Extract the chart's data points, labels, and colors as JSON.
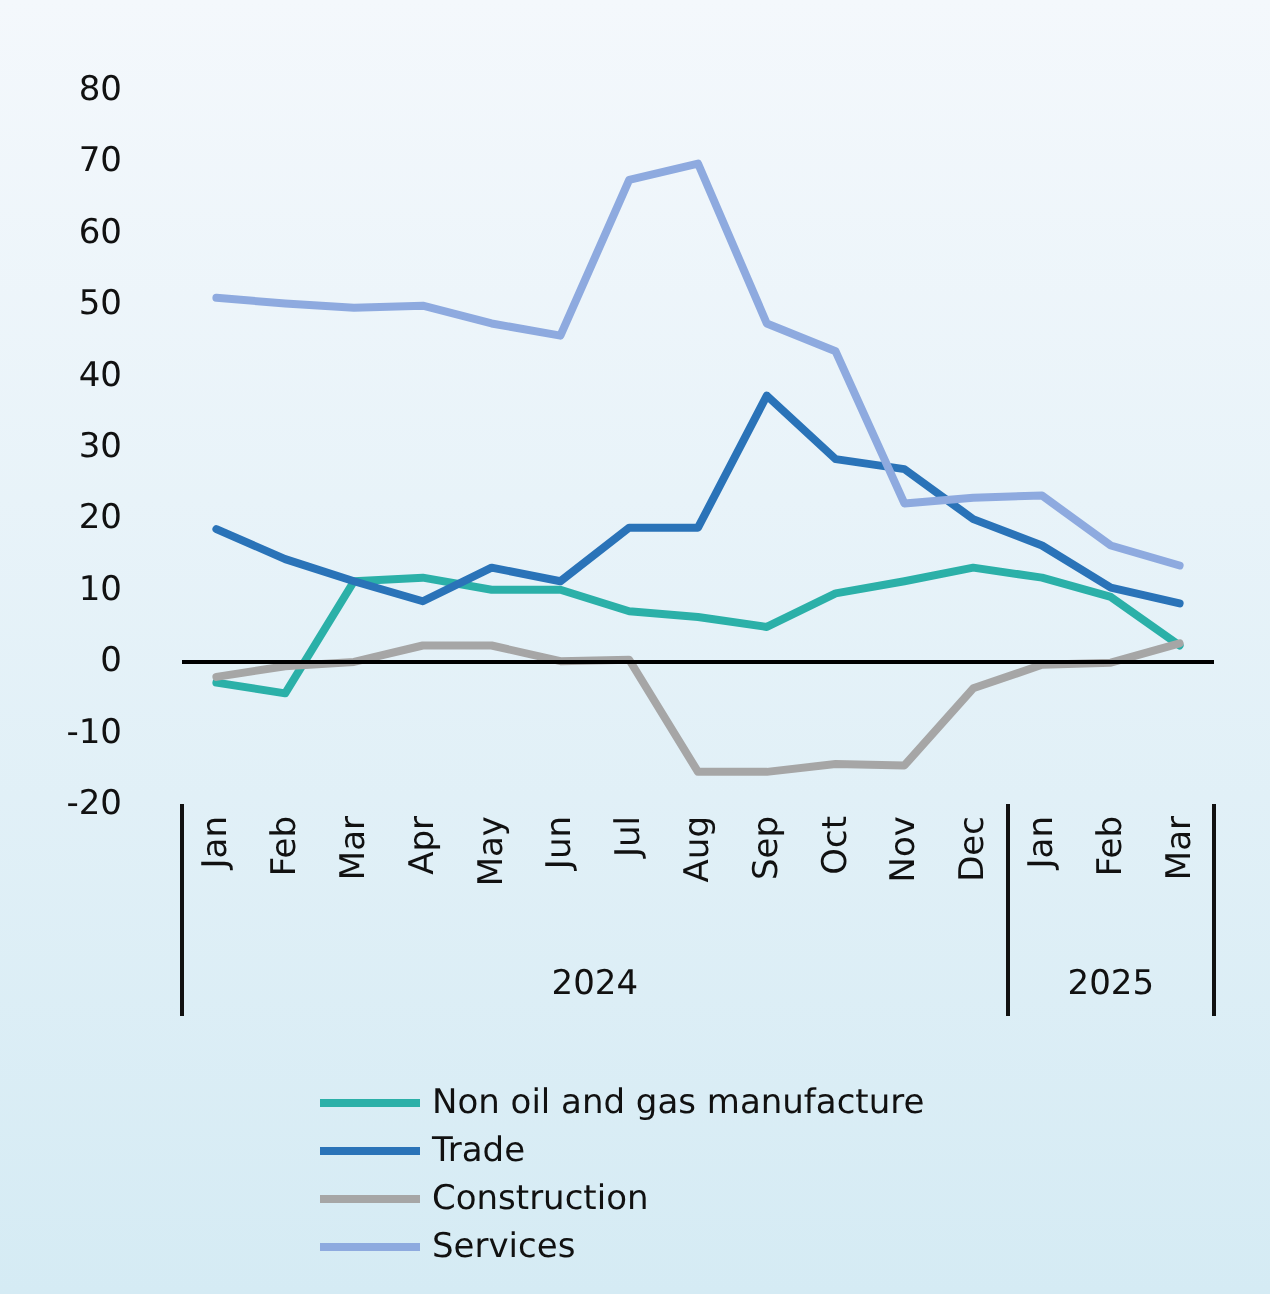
{
  "chart_data": {
    "type": "line",
    "categories": [
      "Jan",
      "Feb",
      "Mar",
      "Apr",
      "May",
      "Jun",
      "Jul",
      "Aug",
      "Sep",
      "Oct",
      "Nov",
      "Dec",
      "Jan",
      "Feb",
      "Mar"
    ],
    "annotations": [
      "2024",
      "2025"
    ],
    "series": [
      {
        "name": "Non oil and gas manufacture",
        "color": "#2bb0a8",
        "values": [
          -3,
          -4.5,
          11.2,
          11.7,
          10,
          10,
          7,
          6.2,
          4.8,
          9.5,
          11.2,
          13.1,
          11.7,
          9,
          2.2
        ]
      },
      {
        "name": "Trade",
        "color": "#2a73b8",
        "values": [
          18.5,
          14.3,
          11.2,
          8.4,
          13.1,
          11.2,
          18.7,
          18.7,
          37.2,
          28.3,
          26.9,
          19.9,
          16.2,
          10.3,
          8.1
        ]
      },
      {
        "name": "Construction",
        "color": "#a6a6a6",
        "values": [
          -2.2,
          -0.7,
          -0.1,
          2.2,
          2.2,
          0,
          0.2,
          -15.5,
          -15.5,
          -14.4,
          -14.6,
          -3.8,
          -0.5,
          -0.2,
          2.5
        ]
      },
      {
        "name": "Services",
        "color": "#8eaadf",
        "values": [
          50.9,
          50.1,
          49.5,
          49.8,
          47.3,
          45.6,
          67.4,
          69.7,
          47.3,
          43.4,
          22.1,
          22.9,
          23.2,
          16.2,
          13.4
        ]
      }
    ],
    "ylim": [
      -20,
      80
    ],
    "yticks": [
      -20,
      -10,
      0,
      10,
      20,
      30,
      40,
      50,
      60,
      70,
      80
    ],
    "ref_lines": [
      {
        "axis": "y",
        "value": 0,
        "color": "#000000",
        "line_style": "solid"
      }
    ],
    "grid": false,
    "legend": "bottom",
    "marker": "none",
    "line_style": "solid"
  }
}
